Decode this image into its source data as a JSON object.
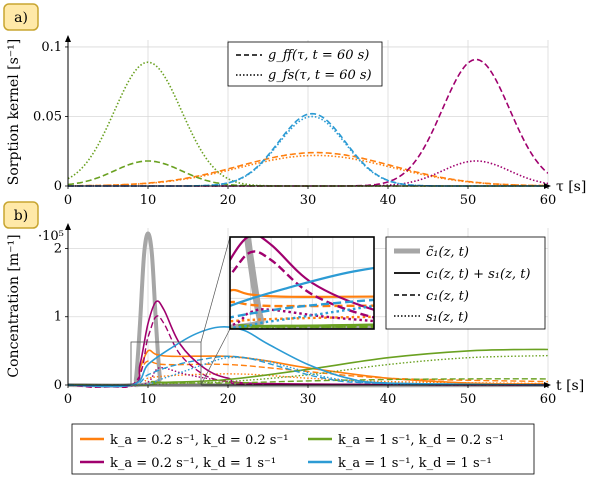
{
  "colors": {
    "orange": "#ff7f0e",
    "magenta": "#a0006e",
    "green": "#6aa121",
    "blue": "#2c9bd4",
    "gray": "#a6a6a6",
    "badge_fill": "#ffe9a8",
    "badge_stroke": "#c8a530"
  },
  "panel_a": {
    "badge": "a)",
    "ylabel": "Sorption kernel [s⁻¹]",
    "xlabel": "τ [s]",
    "xticks": [
      "0",
      "10",
      "20",
      "30",
      "40",
      "50",
      "60"
    ],
    "yticks": [
      "0",
      "0.05",
      "0.1"
    ],
    "legend": [
      "g_ff(τ, t = 60 s)",
      "g_fs(τ, t = 60 s)"
    ]
  },
  "panel_b": {
    "badge": "b)",
    "ylabel": "Concentration [m⁻¹]",
    "xlabel": "t [s]",
    "multiplier": "·10⁵",
    "xticks": [
      "0",
      "10",
      "20",
      "30",
      "40",
      "50",
      "60"
    ],
    "yticks": [
      "0",
      "1",
      "2"
    ],
    "legend": [
      "c̃₁(z, t)",
      "c₁(z, t) + s₁(z, t)",
      "c₁(z, t)",
      "s₁(z, t)"
    ]
  },
  "bottom_legend": [
    "k_a = 0.2 s⁻¹, k_d = 0.2 s⁻¹",
    "k_a = 1 s⁻¹, k_d = 0.2 s⁻¹",
    "k_a = 0.2 s⁻¹, k_d = 1 s⁻¹",
    "k_a = 1 s⁻¹, k_d = 1 s⁻¹"
  ],
  "chart_data": [
    {
      "type": "line",
      "xlabel": "τ [s]",
      "ylabel": "Sorption kernel [s⁻¹]",
      "xlim": [
        0,
        60
      ],
      "ylim": [
        0,
        0.105
      ],
      "grid": true,
      "legend_position": "top-center",
      "series": [
        {
          "kernel": "g_ff",
          "color": "orange",
          "style": "dashed",
          "peaks": [
            {
              "center": 31,
              "sigma": 9.5,
              "height": 0.024
            }
          ]
        },
        {
          "kernel": "g_fs",
          "color": "orange",
          "style": "dotted",
          "peaks": [
            {
              "center": 31,
              "sigma": 9.5,
              "height": 0.022
            }
          ]
        },
        {
          "kernel": "g_ff",
          "color": "magenta",
          "style": "dashed",
          "peaks": [
            {
              "center": 51,
              "sigma": 4.2,
              "height": 0.091
            }
          ]
        },
        {
          "kernel": "g_fs",
          "color": "magenta",
          "style": "dotted",
          "peaks": [
            {
              "center": 51,
              "sigma": 4.2,
              "height": 0.018
            }
          ]
        },
        {
          "kernel": "g_ff",
          "color": "green",
          "style": "dashed",
          "peaks": [
            {
              "center": 10,
              "sigma": 4.2,
              "height": 0.018
            }
          ]
        },
        {
          "kernel": "g_fs",
          "color": "green",
          "style": "dotted",
          "peaks": [
            {
              "center": 10,
              "sigma": 4.2,
              "height": 0.089
            }
          ]
        },
        {
          "kernel": "g_ff",
          "color": "blue",
          "style": "dashed",
          "peaks": [
            {
              "center": 30.5,
              "sigma": 4.2,
              "height": 0.052
            }
          ]
        },
        {
          "kernel": "g_fs",
          "color": "blue",
          "style": "dotted",
          "peaks": [
            {
              "center": 30.5,
              "sigma": 4.2,
              "height": 0.05
            }
          ]
        }
      ]
    },
    {
      "type": "line",
      "xlabel": "t [s]",
      "ylabel": "Concentration [m⁻¹]",
      "y_multiplier": 100000,
      "xlim": [
        0,
        60
      ],
      "ylim": [
        0,
        2.3
      ],
      "grid": true,
      "legend_position": "right",
      "series": [
        {
          "quantity": "c̃₁",
          "color": "gray",
          "style": "solid",
          "points": [
            [
              0,
              0
            ],
            [
              8,
              0
            ],
            [
              8.5,
              0.1
            ],
            [
              9,
              0.9
            ],
            [
              9.5,
              1.9
            ],
            [
              10,
              2.22
            ],
            [
              10.5,
              1.9
            ],
            [
              11,
              0.9
            ],
            [
              11.5,
              0.1
            ],
            [
              12,
              0
            ],
            [
              60,
              0
            ]
          ]
        },
        {
          "quantity": "c₁+s₁",
          "color": "orange",
          "style": "solid",
          "points": [
            [
              0,
              0
            ],
            [
              8,
              0
            ],
            [
              9,
              0.25
            ],
            [
              10,
              0.5
            ],
            [
              11,
              0.45
            ],
            [
              13,
              0.42
            ],
            [
              20,
              0.42
            ],
            [
              25,
              0.35
            ],
            [
              30,
              0.25
            ],
            [
              40,
              0.1
            ],
            [
              50,
              0.03
            ],
            [
              60,
              0.01
            ]
          ]
        },
        {
          "quantity": "c₁",
          "color": "orange",
          "style": "dashed",
          "points": [
            [
              0,
              0
            ],
            [
              8,
              0
            ],
            [
              9,
              0.2
            ],
            [
              10,
              0.35
            ],
            [
              12,
              0.3
            ],
            [
              20,
              0.3
            ],
            [
              28,
              0.22
            ],
            [
              40,
              0.1
            ],
            [
              60,
              0.05
            ]
          ]
        },
        {
          "quantity": "s₁",
          "color": "orange",
          "style": "dotted",
          "points": [
            [
              0,
              0
            ],
            [
              9,
              0
            ],
            [
              10,
              0.1
            ],
            [
              15,
              0.15
            ],
            [
              22,
              0.16
            ],
            [
              30,
              0.1
            ],
            [
              40,
              0.05
            ],
            [
              60,
              0.02
            ]
          ]
        },
        {
          "quantity": "c₁+s₁",
          "color": "magenta",
          "style": "solid",
          "points": [
            [
              0,
              0
            ],
            [
              8,
              0
            ],
            [
              9,
              0.3
            ],
            [
              10,
              0.9
            ],
            [
              11,
              1.22
            ],
            [
              12,
              1.1
            ],
            [
              14,
              0.6
            ],
            [
              17,
              0.25
            ],
            [
              20,
              0.1
            ],
            [
              25,
              0.02
            ],
            [
              60,
              0
            ]
          ]
        },
        {
          "quantity": "c₁",
          "color": "magenta",
          "style": "dashed",
          "points": [
            [
              0,
              0
            ],
            [
              8,
              0
            ],
            [
              10,
              0.7
            ],
            [
              11,
              1.0
            ],
            [
              12,
              0.9
            ],
            [
              14,
              0.45
            ],
            [
              17,
              0.15
            ],
            [
              20,
              0.05
            ],
            [
              25,
              0.01
            ],
            [
              60,
              0
            ]
          ]
        },
        {
          "quantity": "s₁",
          "color": "magenta",
          "style": "dotted",
          "points": [
            [
              0,
              0
            ],
            [
              9,
              0
            ],
            [
              11,
              0.22
            ],
            [
              12,
              0.25
            ],
            [
              15,
              0.15
            ],
            [
              20,
              0.05
            ],
            [
              25,
              0.01
            ],
            [
              60,
              0
            ]
          ]
        },
        {
          "quantity": "c₁+s₁",
          "color": "green",
          "style": "solid",
          "points": [
            [
              0,
              0
            ],
            [
              10,
              0
            ],
            [
              10.5,
              0.05
            ],
            [
              12,
              0.04
            ],
            [
              20,
              0.08
            ],
            [
              30,
              0.23
            ],
            [
              40,
              0.4
            ],
            [
              50,
              0.5
            ],
            [
              57,
              0.52
            ],
            [
              60,
              0.52
            ]
          ]
        },
        {
          "quantity": "c₁",
          "color": "green",
          "style": "dashed",
          "points": [
            [
              0,
              0
            ],
            [
              10,
              0
            ],
            [
              11,
              0.03
            ],
            [
              20,
              0.03
            ],
            [
              30,
              0.06
            ],
            [
              40,
              0.08
            ],
            [
              50,
              0.09
            ],
            [
              60,
              0.09
            ]
          ]
        },
        {
          "quantity": "s₁",
          "color": "green",
          "style": "dotted",
          "points": [
            [
              0,
              0
            ],
            [
              10,
              0
            ],
            [
              12,
              0.02
            ],
            [
              20,
              0.05
            ],
            [
              30,
              0.15
            ],
            [
              40,
              0.3
            ],
            [
              50,
              0.4
            ],
            [
              60,
              0.43
            ]
          ]
        },
        {
          "quantity": "c₁+s₁",
          "color": "blue",
          "style": "solid",
          "points": [
            [
              0,
              0
            ],
            [
              8,
              0
            ],
            [
              10,
              0.3
            ],
            [
              13,
              0.55
            ],
            [
              16,
              0.75
            ],
            [
              19,
              0.85
            ],
            [
              22,
              0.8
            ],
            [
              25,
              0.6
            ],
            [
              30,
              0.3
            ],
            [
              35,
              0.1
            ],
            [
              40,
              0.03
            ],
            [
              60,
              0
            ]
          ]
        },
        {
          "quantity": "c₁",
          "color": "blue",
          "style": "dashed",
          "points": [
            [
              0,
              0
            ],
            [
              8,
              0
            ],
            [
              10,
              0.15
            ],
            [
              13,
              0.28
            ],
            [
              17,
              0.38
            ],
            [
              20,
              0.42
            ],
            [
              23,
              0.38
            ],
            [
              27,
              0.25
            ],
            [
              32,
              0.1
            ],
            [
              38,
              0.03
            ],
            [
              60,
              0
            ]
          ]
        },
        {
          "quantity": "s₁",
          "color": "blue",
          "style": "dotted",
          "points": [
            [
              0,
              0
            ],
            [
              9,
              0
            ],
            [
              12,
              0.1
            ],
            [
              17,
              0.3
            ],
            [
              20,
              0.4
            ],
            [
              24,
              0.37
            ],
            [
              28,
              0.25
            ],
            [
              33,
              0.1
            ],
            [
              40,
              0.02
            ],
            [
              60,
              0
            ]
          ]
        }
      ],
      "inset": {
        "xlim": [
          10,
          17
        ],
        "ylim": [
          0,
          1.2
        ],
        "grid": true
      }
    }
  ]
}
